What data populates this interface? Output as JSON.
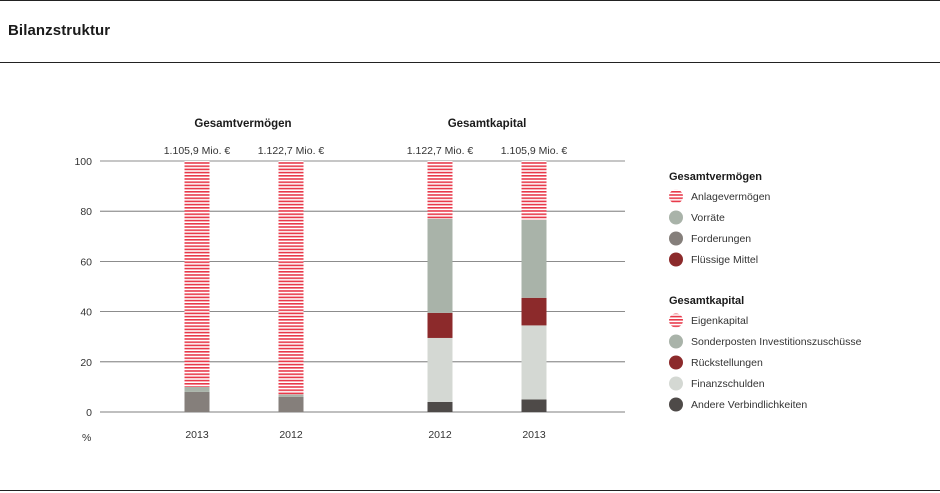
{
  "page": {
    "title": "Bilanzstruktur"
  },
  "chart_data": {
    "type": "bar",
    "stacked": true,
    "ylim": [
      0,
      100
    ],
    "yticks": [
      0,
      20,
      40,
      60,
      80,
      100
    ],
    "yunit": "%",
    "grid": true,
    "groups": [
      {
        "title": "Gesamtvermögen",
        "bars": [
          {
            "category": "2013",
            "total": "1.105,9 Mio. €",
            "values": {
              "Forderungen": 8,
              "Vorräte": 2,
              "Flüssige Mittel": 0,
              "Anlagevermögen": 90
            }
          },
          {
            "category": "2012",
            "total": "1.122,7 Mio. €",
            "values": {
              "Forderungen": 6,
              "Vorräte": 1,
              "Flüssige Mittel": 0,
              "Anlagevermögen": 93
            }
          }
        ]
      },
      {
        "title": "Gesamtkapital",
        "bars": [
          {
            "category": "2012",
            "total": "1.122,7 Mio. €",
            "values": {
              "Andere Verbindlichkeiten": 4,
              "Finanzschulden": 25.5,
              "Rückstellungen": 10,
              "Sonderposten Investitionszuschüsse": 37.5,
              "Eigenkapital": 23
            }
          },
          {
            "category": "2013",
            "total": "1.105,9 Mio. €",
            "values": {
              "Andere Verbindlichkeiten": 5,
              "Finanzschulden": 29.5,
              "Rückstellungen": 11,
              "Sonderposten Investitionszuschüsse": 31,
              "Eigenkapital": 23.5
            }
          }
        ]
      }
    ],
    "legend": {
      "position": "right",
      "sections": [
        {
          "title": "Gesamtvermögen",
          "items": [
            {
              "name": "Anlagevermögen",
              "color": "#e8394a",
              "pattern": "stripes"
            },
            {
              "name": "Vorräte",
              "color": "#a9b3a9",
              "pattern": "solid"
            },
            {
              "name": "Forderungen",
              "color": "#857f7b",
              "pattern": "solid"
            },
            {
              "name": "Flüssige Mittel",
              "color": "#8c2a2b",
              "pattern": "solid"
            }
          ]
        },
        {
          "title": "Gesamtkapital",
          "items": [
            {
              "name": "Eigenkapital",
              "color": "#e8394a",
              "pattern": "stripes"
            },
            {
              "name": "Sonderposten Investitionszuschüsse",
              "color": "#a9b3a9",
              "pattern": "solid"
            },
            {
              "name": "Rückstellungen",
              "color": "#8c2a2b",
              "pattern": "solid"
            },
            {
              "name": "Finanzschulden",
              "color": "#d4d8d3",
              "pattern": "solid"
            },
            {
              "name": "Andere Verbindlichkeiten",
              "color": "#4e4a48",
              "pattern": "solid"
            }
          ]
        }
      ]
    }
  }
}
